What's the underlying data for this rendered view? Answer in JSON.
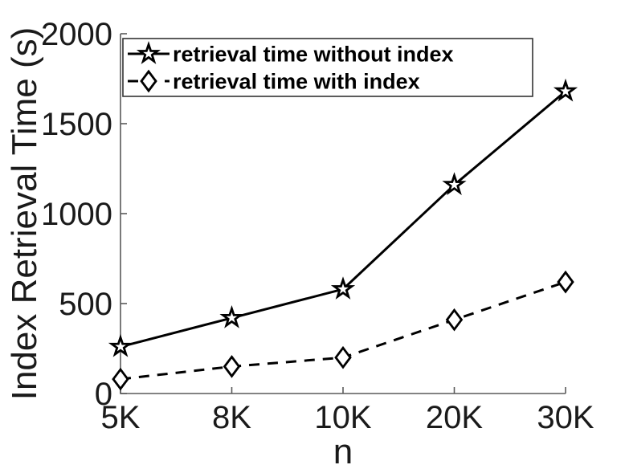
{
  "chart_data": {
    "type": "line",
    "title": "",
    "xlabel": "n",
    "ylabel": "Index Retrieval Time (s)",
    "categories": [
      "5K",
      "8K",
      "10K",
      "20K",
      "30K"
    ],
    "series": [
      {
        "name": "retrieval time without index",
        "values": [
          260,
          420,
          580,
          1160,
          1680
        ],
        "line_style": "solid",
        "marker": "pentagram",
        "color": "#000000"
      },
      {
        "name": "retrieval time with index",
        "values": [
          80,
          150,
          200,
          410,
          620
        ],
        "line_style": "dashed",
        "marker": "diamond",
        "color": "#000000"
      }
    ],
    "ylim": [
      0,
      2000
    ],
    "yticks": [
      0,
      500,
      1000,
      1500,
      2000
    ],
    "grid": false,
    "legend_position": "top-left-inside",
    "axis_color": "#5a5a5a",
    "text_color": "#1a1a1a",
    "marker_fill": "#ffffff",
    "background": "#ffffff"
  }
}
